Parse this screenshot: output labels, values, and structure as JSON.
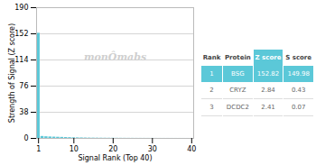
{
  "chart_data": {
    "type": "bar",
    "xlabel": "Signal Rank (Top 40)",
    "ylabel": "Strength of Signal (Z score)",
    "x": [
      1,
      2,
      3,
      4,
      5,
      6,
      7,
      8,
      9,
      10,
      11,
      12,
      13,
      14,
      15,
      16,
      17,
      18,
      19,
      20,
      21,
      22,
      23,
      24,
      25,
      26,
      27,
      28,
      29,
      30,
      31,
      32,
      33,
      34,
      35,
      36,
      37,
      38,
      39,
      40
    ],
    "values": [
      152.82,
      2.84,
      2.41,
      2.1,
      1.9,
      1.7,
      1.5,
      1.3,
      1.1,
      0.9,
      0.8,
      0.7,
      0.6,
      0.5,
      0.45,
      0.4,
      0.35,
      0.3,
      0.28,
      0.25,
      0.22,
      0.2,
      0.18,
      0.16,
      0.14,
      0.12,
      0.11,
      0.1,
      0.09,
      0.08,
      0.07,
      0.06,
      0.055,
      0.05,
      0.045,
      0.04,
      0.035,
      0.03,
      0.025,
      0.02
    ],
    "color": "#5bc8d8",
    "xlim": [
      0.5,
      40.5
    ],
    "xticks": [
      1,
      10,
      20,
      30,
      40
    ],
    "ylim": [
      0,
      190
    ],
    "yticks": [
      0,
      38,
      76,
      114,
      152,
      190
    ],
    "grid": true,
    "annotations": [
      "monÔmabs"
    ],
    "table": {
      "headers": [
        "Rank",
        "Protein",
        "Z score",
        "S score"
      ],
      "rows": [
        [
          "1",
          "BSG",
          "152.82",
          "149.98"
        ],
        [
          "2",
          "CRYZ",
          "2.84",
          "0.43"
        ],
        [
          "3",
          "DCDC2",
          "2.41",
          "0.07"
        ]
      ]
    }
  }
}
